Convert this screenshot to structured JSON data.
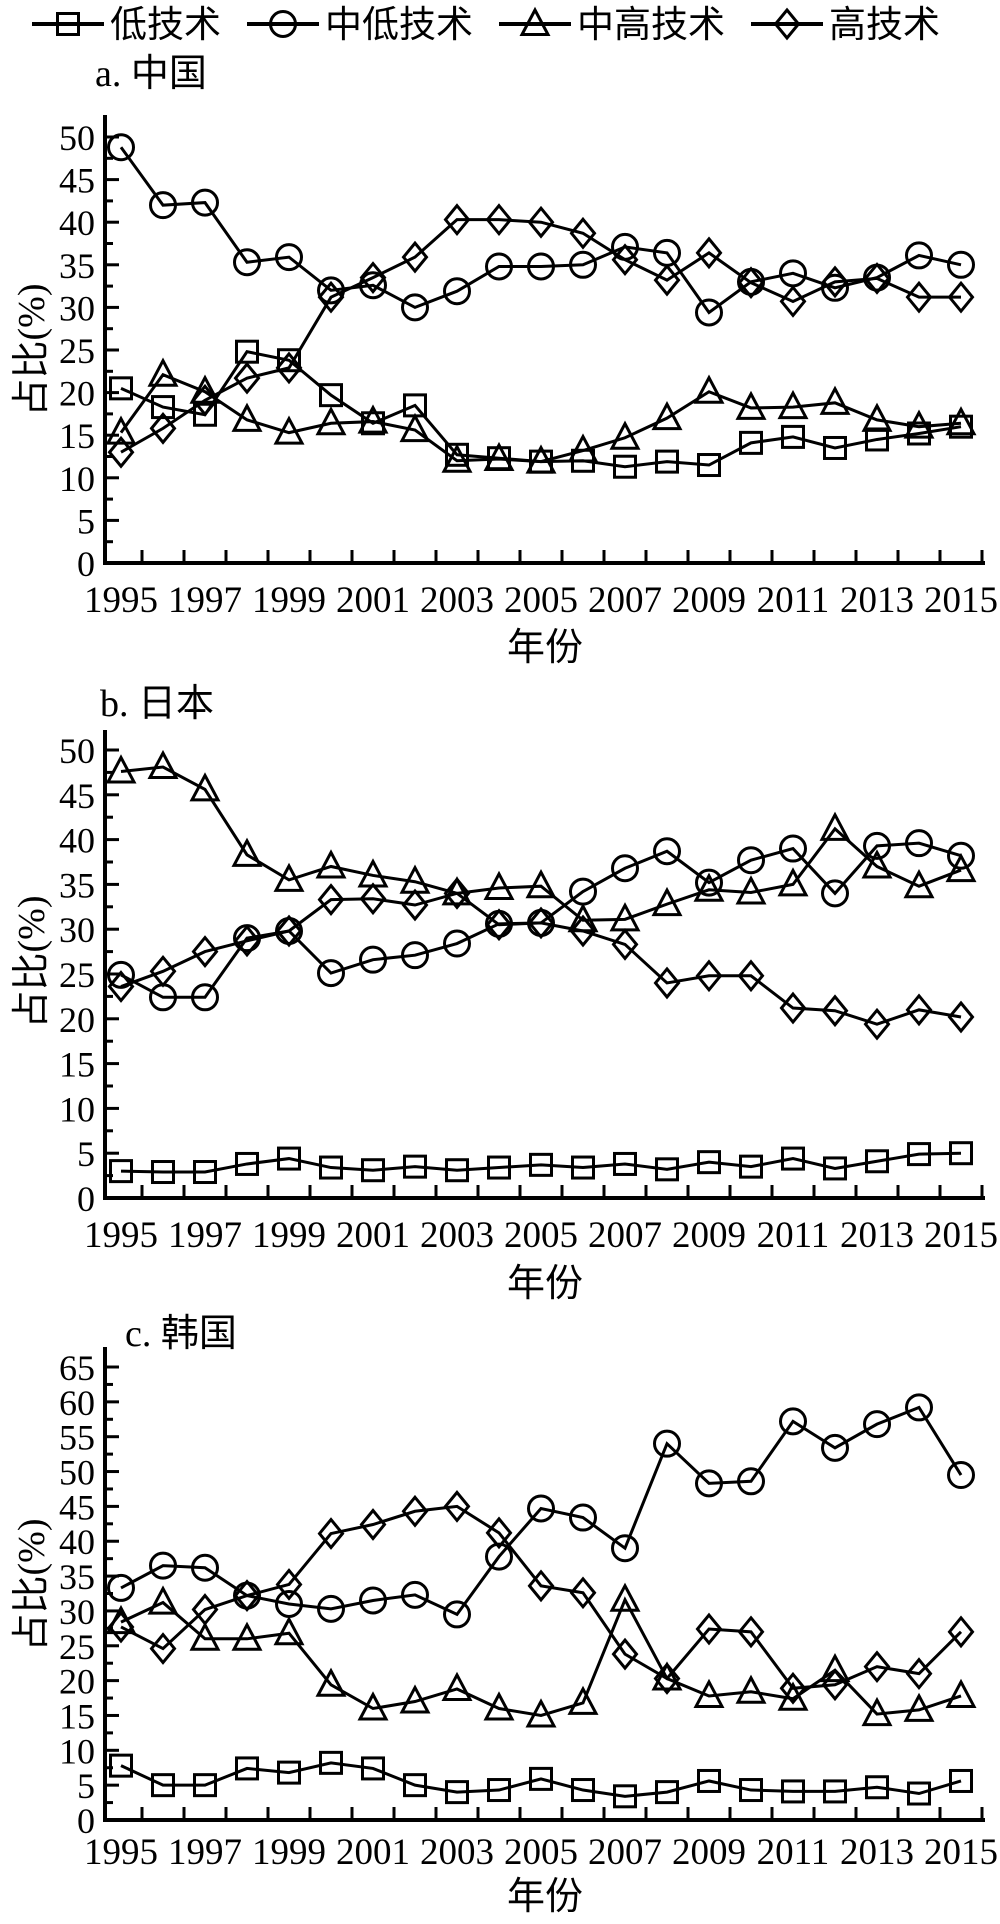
{
  "figure": {
    "background": "#ffffff",
    "line_color": "#000000"
  },
  "legend": {
    "items": [
      {
        "label": "低技术",
        "marker": "square"
      },
      {
        "label": "中低技术",
        "marker": "circle"
      },
      {
        "label": "中高技术",
        "marker": "triangle"
      },
      {
        "label": "高技术",
        "marker": "diamond"
      }
    ]
  },
  "chart_data": [
    {
      "type": "line",
      "title": "a. 中国",
      "xlabel": "年份",
      "ylabel": "占比(%)",
      "grid": false,
      "legend_position": "top-of-figure",
      "x": [
        1995,
        1996,
        1997,
        1998,
        1999,
        2000,
        2001,
        2002,
        2003,
        2004,
        2005,
        2006,
        2007,
        2008,
        2009,
        2010,
        2011,
        2012,
        2013,
        2014,
        2015
      ],
      "xtick_labels": [
        "1995",
        "1997",
        "1999",
        "2001",
        "2003",
        "2005",
        "2007",
        "2009",
        "2011",
        "2013",
        "2015"
      ],
      "ylim": [
        0,
        50
      ],
      "ytick_step": 5,
      "series": [
        {
          "name": "低技术",
          "marker": "square",
          "values": [
            20.5,
            18.3,
            17.4,
            24.8,
            23.8,
            19.7,
            16.4,
            18.5,
            12.7,
            12.3,
            11.9,
            12.0,
            11.3,
            11.9,
            11.5,
            14.1,
            14.8,
            13.5,
            14.5,
            15.2,
            16.0
          ]
        },
        {
          "name": "中低技术",
          "marker": "circle",
          "values": [
            48.8,
            42.0,
            42.3,
            35.3,
            35.9,
            32.0,
            32.6,
            30.0,
            31.9,
            34.8,
            34.8,
            35.0,
            37.1,
            36.4,
            29.4,
            33.0,
            34.0,
            32.3,
            33.5,
            36.1,
            35.0
          ]
        },
        {
          "name": "中高技术",
          "marker": "triangle",
          "values": [
            15.3,
            22.1,
            20.1,
            16.8,
            15.3,
            16.4,
            16.6,
            15.6,
            12.0,
            12.2,
            11.9,
            13.2,
            14.7,
            17.0,
            20.1,
            18.2,
            18.3,
            18.8,
            16.8,
            16.0,
            16.4
          ]
        },
        {
          "name": "高技术",
          "marker": "diamond",
          "values": [
            13.0,
            15.8,
            19.1,
            21.7,
            22.9,
            31.2,
            33.5,
            35.9,
            40.3,
            40.3,
            40.0,
            38.7,
            35.6,
            33.2,
            36.4,
            32.9,
            30.7,
            33.0,
            33.4,
            31.2,
            31.2
          ]
        }
      ]
    },
    {
      "type": "line",
      "title": "b. 日本",
      "xlabel": "年份",
      "ylabel": "占比(%)",
      "grid": false,
      "legend_position": "top-of-figure",
      "x": [
        1995,
        1996,
        1997,
        1998,
        1999,
        2000,
        2001,
        2002,
        2003,
        2004,
        2005,
        2006,
        2007,
        2008,
        2009,
        2010,
        2011,
        2012,
        2013,
        2014,
        2015
      ],
      "xtick_labels": [
        "1995",
        "1997",
        "1999",
        "2001",
        "2003",
        "2005",
        "2007",
        "2009",
        "2011",
        "2013",
        "2015"
      ],
      "ylim": [
        0,
        50
      ],
      "ytick_step": 5,
      "series": [
        {
          "name": "低技术",
          "marker": "square",
          "values": [
            3.0,
            2.9,
            2.9,
            3.8,
            4.4,
            3.4,
            3.1,
            3.5,
            3.1,
            3.4,
            3.7,
            3.4,
            3.8,
            3.2,
            4.0,
            3.5,
            4.4,
            3.3,
            4.1,
            4.9,
            5.0
          ]
        },
        {
          "name": "中低技术",
          "marker": "circle",
          "values": [
            24.9,
            22.4,
            22.4,
            29.0,
            29.8,
            25.1,
            26.6,
            27.1,
            28.4,
            30.6,
            30.7,
            34.2,
            36.8,
            38.7,
            35.2,
            37.7,
            39.0,
            34.0,
            39.3,
            39.6,
            38.2
          ]
        },
        {
          "name": "中高技术",
          "marker": "triangle",
          "values": [
            47.6,
            48.1,
            45.6,
            38.3,
            35.5,
            37.0,
            36.0,
            35.3,
            34.0,
            34.6,
            34.8,
            31.0,
            31.1,
            32.8,
            34.4,
            34.1,
            35.0,
            41.2,
            37.0,
            34.8,
            36.6
          ]
        },
        {
          "name": "高技术",
          "marker": "diamond",
          "values": [
            23.6,
            25.3,
            27.5,
            28.7,
            29.8,
            33.3,
            33.4,
            32.7,
            34.0,
            30.5,
            30.7,
            29.8,
            28.3,
            24.0,
            24.8,
            24.8,
            21.2,
            20.9,
            19.4,
            21.0,
            20.2
          ]
        }
      ]
    },
    {
      "type": "line",
      "title": "c. 韩国",
      "xlabel": "年份",
      "ylabel": "占比(%)",
      "grid": false,
      "legend_position": "top-of-figure",
      "x": [
        1995,
        1996,
        1997,
        1998,
        1999,
        2000,
        2001,
        2002,
        2003,
        2004,
        2005,
        2006,
        2007,
        2008,
        2009,
        2010,
        2011,
        2012,
        2013,
        2014,
        2015
      ],
      "xtick_labels": [
        "1995",
        "1997",
        "1999",
        "2001",
        "2003",
        "2005",
        "2007",
        "2009",
        "2011",
        "2013",
        "2015"
      ],
      "ylim": [
        0,
        65
      ],
      "ytick_step": 5,
      "series": [
        {
          "name": "低技术",
          "marker": "square",
          "values": [
            7.8,
            5.0,
            5.0,
            7.4,
            6.8,
            8.2,
            7.4,
            5.0,
            4.0,
            4.3,
            5.9,
            4.3,
            3.4,
            4.0,
            5.6,
            4.3,
            4.1,
            4.1,
            4.7,
            3.8,
            5.6
          ]
        },
        {
          "name": "中低技术",
          "marker": "circle",
          "values": [
            33.3,
            36.5,
            36.2,
            32.2,
            31.0,
            30.3,
            31.5,
            32.3,
            29.5,
            37.8,
            44.7,
            43.4,
            39.0,
            54.0,
            48.3,
            48.6,
            57.2,
            53.4,
            56.8,
            59.2,
            49.5
          ]
        },
        {
          "name": "中高技术",
          "marker": "triangle",
          "values": [
            28.4,
            31.2,
            26.0,
            26.0,
            26.8,
            19.4,
            16.0,
            17.0,
            18.8,
            16.0,
            15.0,
            16.8,
            31.6,
            20.3,
            17.8,
            18.4,
            17.4,
            21.5,
            15.2,
            15.8,
            17.8
          ]
        },
        {
          "name": "高技术",
          "marker": "diamond",
          "values": [
            27.7,
            24.6,
            30.2,
            32.2,
            33.8,
            41.1,
            42.4,
            44.3,
            45.0,
            41.2,
            33.6,
            32.6,
            23.8,
            20.3,
            27.4,
            27.0,
            18.9,
            19.4,
            22.0,
            21.0,
            27.0
          ]
        }
      ]
    }
  ]
}
